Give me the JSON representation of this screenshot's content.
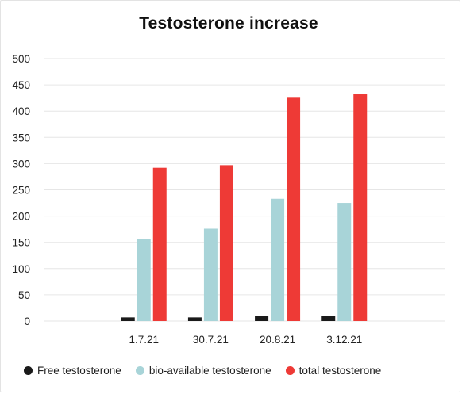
{
  "chart_data": {
    "type": "bar",
    "title": "Testosterone increase",
    "xlabel": "",
    "ylabel": "",
    "categories": [
      "",
      "1.7.21",
      "30.7.21",
      "20.8.21",
      "3.12.21",
      ""
    ],
    "ylim": [
      0,
      500
    ],
    "yticks": [
      0,
      50,
      100,
      150,
      200,
      250,
      300,
      350,
      400,
      450,
      500
    ],
    "grid": true,
    "legend": "bottom",
    "series": [
      {
        "name": "Free testosterone",
        "color": "#1a1a1a",
        "values": [
          null,
          7,
          7,
          10,
          10,
          null
        ]
      },
      {
        "name": "bio-available testosterone",
        "color": "#a8d4d8",
        "values": [
          null,
          157,
          176,
          233,
          225,
          null
        ]
      },
      {
        "name": "total testosterone",
        "color": "#ee3a36",
        "values": [
          null,
          292,
          297,
          427,
          432,
          null
        ]
      }
    ]
  }
}
